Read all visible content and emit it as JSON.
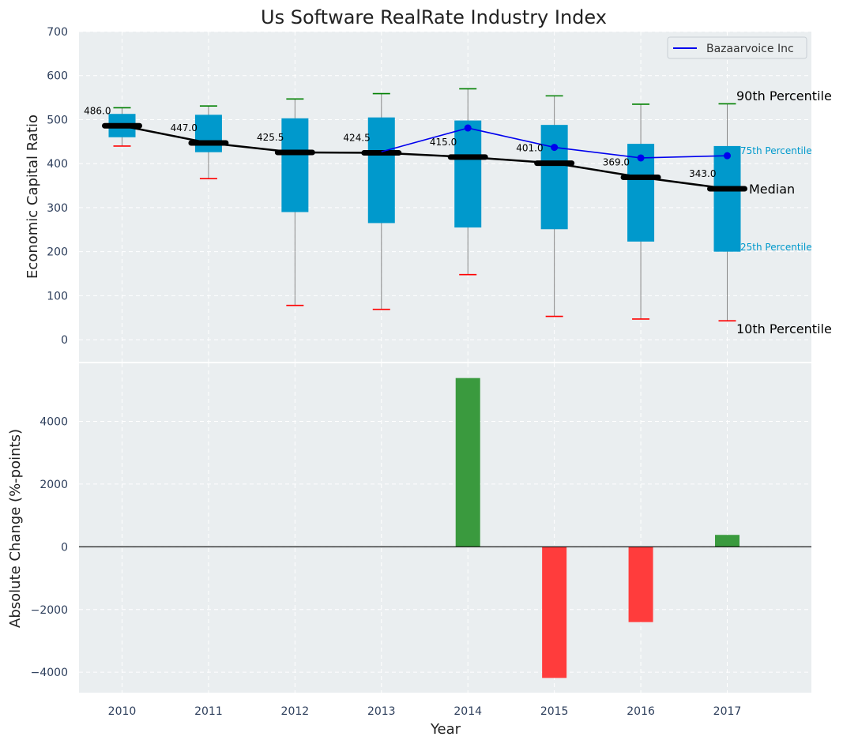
{
  "chart_data": [
    {
      "type": "box",
      "title": "Us Software RealRate Industry Index",
      "ylabel": "Economic Capital Ratio",
      "ylim": [
        -50,
        700
      ],
      "yticks": [
        0,
        100,
        200,
        300,
        400,
        500,
        600,
        700
      ],
      "categories": [
        "2010",
        "2011",
        "2012",
        "2013",
        "2014",
        "2015",
        "2016",
        "2017"
      ],
      "p10": [
        440,
        366,
        78,
        69,
        148,
        53,
        47,
        43
      ],
      "p25": [
        460,
        426,
        290,
        265,
        255,
        251,
        223,
        200
      ],
      "median": [
        486.0,
        447.0,
        425.5,
        424.5,
        415.0,
        401.0,
        369.0,
        343.0
      ],
      "median_labels": [
        "486.0",
        "447.0",
        "425.5",
        "424.5",
        "415.0",
        "401.0",
        "369.0",
        "343.0"
      ],
      "p75": [
        513,
        511,
        503,
        505,
        498,
        488,
        445,
        440
      ],
      "p90": [
        527,
        531,
        547,
        559,
        570,
        554,
        535,
        536
      ],
      "series": [
        {
          "name": "Bazaarvoice Inc",
          "color": "#0000ee",
          "x_start_index": 3,
          "values": [
            427,
            481,
            437,
            413,
            418
          ]
        }
      ],
      "annotations": {
        "p90": "90th Percentile",
        "p75": "75th Percentile",
        "median": "Median",
        "p25": "25th Percentile",
        "p10": "10th Percentile"
      },
      "legend_position": "top-right",
      "grid": true
    },
    {
      "type": "bar",
      "ylabel": "Absolute Change (%-points)",
      "xlabel": "Year",
      "ylim": [
        -4650,
        5850
      ],
      "yticks": [
        -4000,
        -2000,
        0,
        2000,
        4000
      ],
      "ytick_labels": [
        "−4000",
        "−2000",
        "0",
        "2000",
        "4000"
      ],
      "categories": [
        "2010",
        "2011",
        "2012",
        "2013",
        "2014",
        "2015",
        "2016",
        "2017"
      ],
      "values": [
        0,
        0,
        0,
        0,
        5380,
        -4180,
        -2400,
        380
      ],
      "positive_color": "#3a9a3e",
      "negative_color": "#ff3c3c",
      "grid": true
    }
  ],
  "colors": {
    "box": "#0099cc",
    "median": "#000000",
    "p90_cap": "#008000",
    "p10_cap": "#ff0000",
    "whisker": "#888888",
    "panel_bg": "#eaeef0",
    "tick_text": "#2e3f5c"
  }
}
